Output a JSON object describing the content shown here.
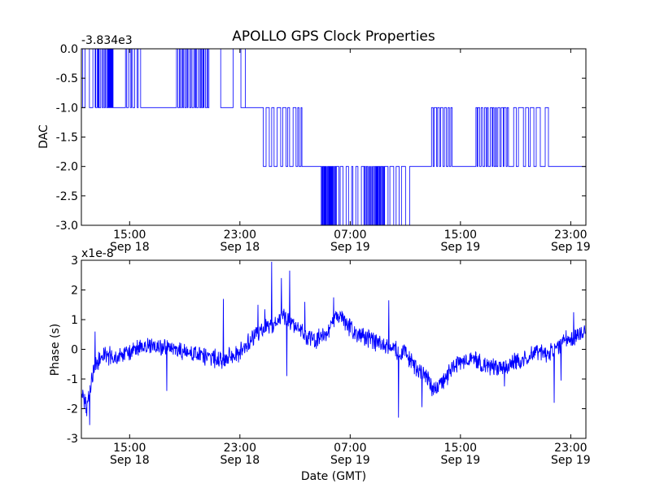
{
  "title": "APOLLO GPS Clock Properties",
  "chart_data": [
    {
      "type": "line",
      "name": "dac-panel",
      "ylabel": "DAC",
      "xlabel": "",
      "offset_label": "-3.834e3",
      "ylim": [
        -3.0,
        0.0
      ],
      "xlim_hours": [
        0,
        36.6
      ],
      "yticks": [
        "0.0",
        "-0.5",
        "-1.0",
        "-1.5",
        "-2.0",
        "-2.5",
        "-3.0"
      ],
      "ytick_values": [
        0.0,
        -0.5,
        -1.0,
        -1.5,
        -2.0,
        -2.5,
        -3.0
      ],
      "xticks": [
        {
          "hour": 3.5,
          "time": "15:00",
          "date": "Sep 18"
        },
        {
          "hour": 11.5,
          "time": "23:00",
          "date": "Sep 18"
        },
        {
          "hour": 19.5,
          "time": "07:00",
          "date": "Sep 19"
        },
        {
          "hour": 27.5,
          "time": "15:00",
          "date": "Sep 19"
        },
        {
          "hour": 35.5,
          "time": "23:00",
          "date": "Sep 19"
        }
      ],
      "color": "#0000ff",
      "segments": [
        {
          "t0": 0.0,
          "t1": 0.1,
          "level": 0
        },
        {
          "t0": 0.1,
          "t1": 1.0,
          "level": -1,
          "toggle": 0,
          "density": 2
        },
        {
          "t0": 1.0,
          "t1": 1.9,
          "level": 0,
          "toggle": -1,
          "density": 6
        },
        {
          "t0": 1.9,
          "t1": 2.3,
          "level": -1,
          "toggle": 0,
          "density": 6
        },
        {
          "t0": 2.3,
          "t1": 3.2,
          "level": -1
        },
        {
          "t0": 3.2,
          "t1": 4.3,
          "level": 0,
          "toggle": -1,
          "density": 4
        },
        {
          "t0": 4.3,
          "t1": 6.9,
          "level": -1
        },
        {
          "t0": 6.9,
          "t1": 9.3,
          "level": 0,
          "toggle": -1,
          "density": 14
        },
        {
          "t0": 9.3,
          "t1": 11.9,
          "level": 0,
          "toggle": -1,
          "density": 2
        },
        {
          "t0": 11.9,
          "t1": 13.2,
          "level": -1
        },
        {
          "t0": 13.2,
          "t1": 16.0,
          "level": -2,
          "toggle": -1,
          "density": 8
        },
        {
          "t0": 16.0,
          "t1": 17.4,
          "level": -2
        },
        {
          "t0": 17.4,
          "t1": 18.5,
          "level": -3,
          "toggle": -2,
          "density": 12
        },
        {
          "t0": 18.5,
          "t1": 20.5,
          "level": -2,
          "toggle": -3,
          "density": 6
        },
        {
          "t0": 20.5,
          "t1": 22.0,
          "level": -3,
          "toggle": -2,
          "density": 14
        },
        {
          "t0": 22.0,
          "t1": 23.9,
          "level": -2,
          "toggle": -3,
          "density": 4
        },
        {
          "t0": 23.9,
          "t1": 25.4,
          "level": -2
        },
        {
          "t0": 25.4,
          "t1": 26.9,
          "level": -1,
          "toggle": -2,
          "density": 6
        },
        {
          "t0": 26.9,
          "t1": 28.5,
          "level": -2
        },
        {
          "t0": 28.5,
          "t1": 31.0,
          "level": -2,
          "toggle": -1,
          "density": 12
        },
        {
          "t0": 31.0,
          "t1": 34.0,
          "level": -2,
          "toggle": -1,
          "density": 6
        },
        {
          "t0": 34.0,
          "t1": 36.6,
          "level": -2
        }
      ]
    },
    {
      "type": "line",
      "name": "phase-panel",
      "ylabel": "Phase (s)",
      "xlabel": "Date (GMT)",
      "offset_label": "x1e-8",
      "ylim": [
        -3,
        3
      ],
      "xlim_hours": [
        0,
        36.6
      ],
      "yticks": [
        "3",
        "2",
        "1",
        "0",
        "-1",
        "-2",
        "-3"
      ],
      "ytick_values": [
        3,
        2,
        1,
        0,
        -1,
        -2,
        -3
      ],
      "xticks": [
        {
          "hour": 3.5,
          "time": "15:00",
          "date": "Sep 18"
        },
        {
          "hour": 11.5,
          "time": "23:00",
          "date": "Sep 18"
        },
        {
          "hour": 19.5,
          "time": "07:00",
          "date": "Sep 19"
        },
        {
          "hour": 27.5,
          "time": "15:00",
          "date": "Sep 19"
        },
        {
          "hour": 35.5,
          "time": "23:00",
          "date": "Sep 19"
        }
      ],
      "color": "#0000ff",
      "trend": [
        [
          0.0,
          -1.5
        ],
        [
          0.4,
          -2.0
        ],
        [
          0.9,
          -0.6
        ],
        [
          1.6,
          -0.2
        ],
        [
          2.6,
          -0.3
        ],
        [
          3.5,
          -0.1
        ],
        [
          4.5,
          0.1
        ],
        [
          5.5,
          0.1
        ],
        [
          6.5,
          0.0
        ],
        [
          7.5,
          -0.1
        ],
        [
          8.5,
          -0.2
        ],
        [
          9.5,
          -0.3
        ],
        [
          10.5,
          -0.3
        ],
        [
          11.5,
          -0.1
        ],
        [
          12.2,
          0.3
        ],
        [
          13.0,
          0.6
        ],
        [
          14.0,
          0.9
        ],
        [
          14.8,
          1.1
        ],
        [
          15.6,
          0.8
        ],
        [
          16.3,
          0.4
        ],
        [
          17.0,
          0.3
        ],
        [
          17.8,
          0.5
        ],
        [
          18.4,
          1.1
        ],
        [
          19.0,
          1.0
        ],
        [
          19.8,
          0.6
        ],
        [
          20.6,
          0.4
        ],
        [
          21.5,
          0.2
        ],
        [
          22.5,
          0.0
        ],
        [
          23.5,
          -0.1
        ],
        [
          24.2,
          -0.6
        ],
        [
          25.0,
          -0.9
        ],
        [
          25.6,
          -1.4
        ],
        [
          26.2,
          -1.1
        ],
        [
          27.0,
          -0.6
        ],
        [
          28.0,
          -0.3
        ],
        [
          29.0,
          -0.5
        ],
        [
          30.0,
          -0.6
        ],
        [
          31.0,
          -0.5
        ],
        [
          32.0,
          -0.4
        ],
        [
          33.0,
          -0.1
        ],
        [
          34.0,
          -0.1
        ],
        [
          35.0,
          0.3
        ],
        [
          35.8,
          0.4
        ],
        [
          36.6,
          0.7
        ]
      ],
      "spikes": [
        {
          "hour": 0.6,
          "value": -2.55
        },
        {
          "hour": 1.0,
          "value": 0.6
        },
        {
          "hour": 6.2,
          "value": -1.4
        },
        {
          "hour": 10.3,
          "value": 1.7
        },
        {
          "hour": 12.8,
          "value": 1.5
        },
        {
          "hour": 13.3,
          "value": 1.35
        },
        {
          "hour": 13.8,
          "value": 2.95
        },
        {
          "hour": 14.5,
          "value": 2.4
        },
        {
          "hour": 14.9,
          "value": -0.9
        },
        {
          "hour": 15.1,
          "value": 2.65
        },
        {
          "hour": 16.2,
          "value": 1.6
        },
        {
          "hour": 18.3,
          "value": 1.75
        },
        {
          "hour": 22.3,
          "value": 1.65
        },
        {
          "hour": 23.0,
          "value": -2.3
        },
        {
          "hour": 24.7,
          "value": -1.95
        },
        {
          "hour": 30.7,
          "value": -1.25
        },
        {
          "hour": 34.3,
          "value": -1.8
        },
        {
          "hour": 34.8,
          "value": -1.05
        },
        {
          "hour": 35.7,
          "value": 1.25
        }
      ],
      "noise_amplitude": 0.3
    }
  ]
}
